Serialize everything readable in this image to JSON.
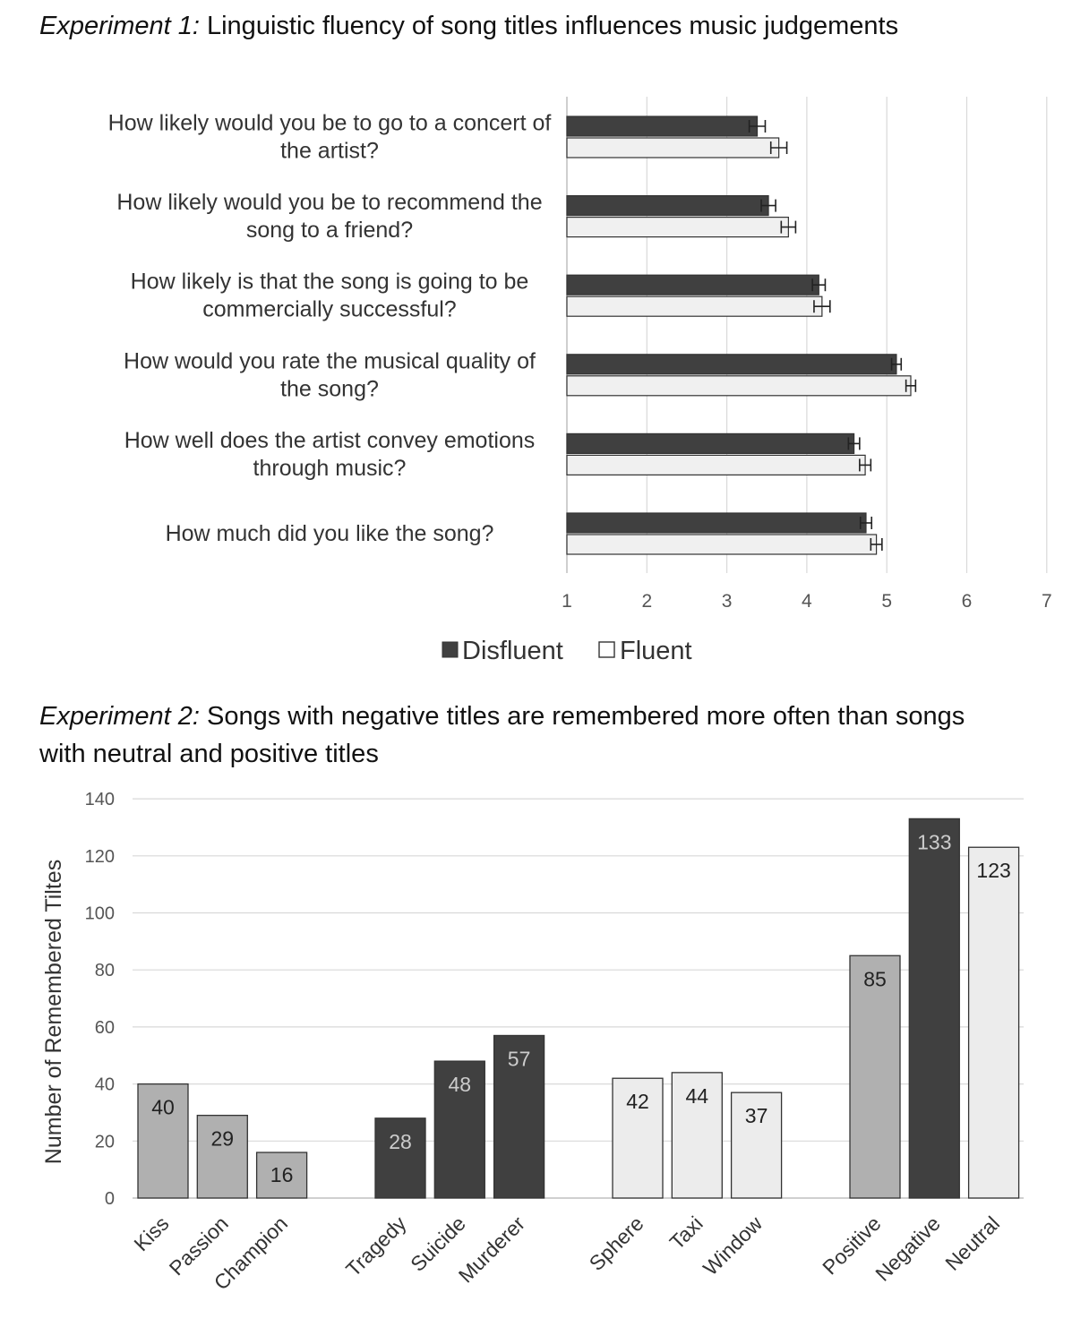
{
  "colors": {
    "disfluent": "#404040",
    "fluent": "#f0f0f0",
    "negative_group": "#404040",
    "positive_group": "#b0b0b0",
    "neutral_group": "#ececec",
    "grid": "#d9d9d9",
    "axis_text": "#555555"
  },
  "experiment1": {
    "label": "Experiment 1:",
    "title": "Linguistic fluency of song titles influences music judgements"
  },
  "experiment2": {
    "label": "Experiment 2:",
    "title": "Songs with negative titles are remembered more often than songs with neutral and positive titles"
  },
  "chart_data": [
    {
      "type": "bar",
      "orientation": "horizontal",
      "categories": [
        [
          "How likely would you be to go to a concert of",
          "the artist?"
        ],
        [
          "How likely would you be to recommend the",
          "song to a friend?"
        ],
        [
          "How likely is that the song is going to be",
          "commercially successful?"
        ],
        [
          "How would you rate the musical quality of",
          "the song?"
        ],
        [
          "How well does the artist convey emotions",
          "through music?"
        ],
        [
          "How much did you like the song?"
        ]
      ],
      "series": [
        {
          "name": "Disfluent",
          "values": [
            3.38,
            3.52,
            4.15,
            5.12,
            4.59,
            4.74
          ],
          "errors": [
            0.1,
            0.09,
            0.08,
            0.06,
            0.07,
            0.07
          ]
        },
        {
          "name": "Fluent",
          "values": [
            3.65,
            3.77,
            4.19,
            5.3,
            4.73,
            4.87
          ],
          "errors": [
            0.1,
            0.09,
            0.1,
            0.06,
            0.07,
            0.07
          ]
        }
      ],
      "xlim": [
        1,
        7
      ],
      "xticks": [
        "1",
        "2",
        "3",
        "4",
        "5",
        "6",
        "7"
      ],
      "grid": "vertical",
      "legend": "bottom"
    },
    {
      "type": "bar",
      "ylabel": "Number of Remembered Tiltes",
      "ylim": [
        0,
        140
      ],
      "yticks": [
        "0",
        "20",
        "40",
        "60",
        "80",
        "100",
        "120",
        "140"
      ],
      "grid": "horizontal",
      "groups": [
        {
          "kind": "positive",
          "bars": [
            {
              "label": "Kiss",
              "value": 40
            },
            {
              "label": "Passion",
              "value": 29
            },
            {
              "label": "Champion",
              "value": 16
            }
          ]
        },
        {
          "kind": "negative",
          "bars": [
            {
              "label": "Tragedy",
              "value": 28
            },
            {
              "label": "Suicide",
              "value": 48
            },
            {
              "label": "Murderer",
              "value": 57
            }
          ]
        },
        {
          "kind": "neutral",
          "bars": [
            {
              "label": "Sphere",
              "value": 42
            },
            {
              "label": "Taxi",
              "value": 44
            },
            {
              "label": "Window",
              "value": 37
            }
          ]
        },
        {
          "kind": "totals",
          "bars": [
            {
              "label": "Positive",
              "value": 85,
              "kind": "positive"
            },
            {
              "label": "Negative",
              "value": 133,
              "kind": "negative"
            },
            {
              "label": "Neutral",
              "value": 123,
              "kind": "neutral"
            }
          ]
        }
      ]
    }
  ]
}
